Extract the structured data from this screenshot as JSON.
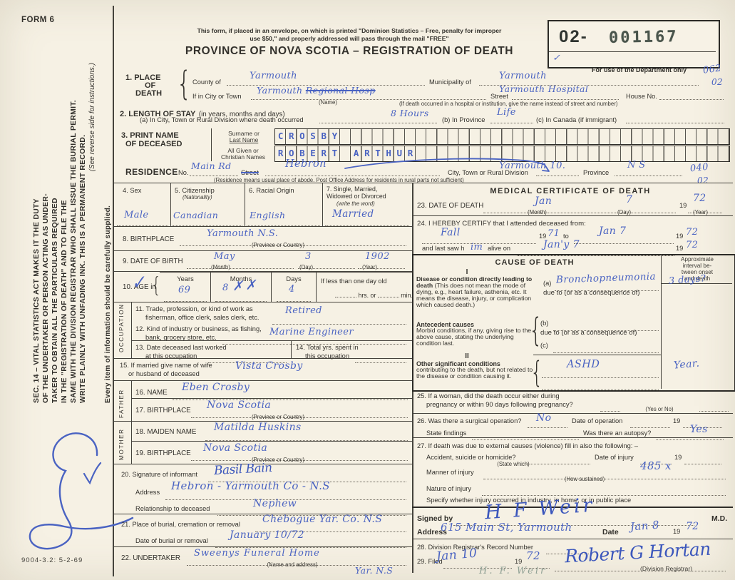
{
  "header": {
    "form_no": "FORM 6",
    "mail1": "This form, if placed in an envelope, on which is printed \"Dominion Statistics – Free, penalty for improper",
    "mail2": "use $50,\" and properly addressed will pass through the mail \"FREE\"",
    "title": "PROVINCE OF NOVA SCOTIA – REGISTRATION OF DEATH",
    "stamp_prefix": "02-",
    "stamp_number": "001167",
    "stamp_check": "✓",
    "dept_note": "For use of the Department only",
    "code1": "062",
    "code2": "02"
  },
  "sidebar": {
    "l1": "SEC. 14 – VITAL STATISTICS ACT MAKES IT THE DUTY",
    "l2": "OF THE UNDERTAKER OR PERSON ACTING AS UNDER-",
    "l3": "TAKER TO OBTAIN ALL THE PARTICULARS REQUIRED",
    "l4": "IN THE \"REGISTRATION OF DEATH\" AND TO FILE THE",
    "l5": "SAME WITH THE DIVISION REGISTRAR WHO SHALL ISSUE THE BURIAL PERMIT.",
    "l6": "WRITE PLAINLY WITH UNFADING INK. THIS IS A PERMANENT RECORD.",
    "see": "(See reverse side for instructions.)",
    "every": "Every item of information should be carefully supplied.",
    "check": "✓",
    "doc_code": "9004-3.2: 5-2-69"
  },
  "s1": {
    "label1": "1. PLACE",
    "label2": "OF",
    "label3": "DEATH",
    "county_label": "County of",
    "county_value": "Yarmouth",
    "municipality_label": "Municipality of",
    "municipality_value": "Yarmouth",
    "city_label": "If in City or Town",
    "city_value": "Yarmouth",
    "city_value_struck": "Regional Hosp",
    "name_note": "(Name)",
    "street_label": "Street",
    "street_value": "Yarmouth Hospital",
    "house_label": "House No.",
    "hospital_note": "(If death occurred in a hospital or institution, give the name instead of street and number)"
  },
  "s2": {
    "label": "2. LENGTH OF STAY",
    "label_sub": "(in years, months and days)",
    "a_label": "(a) In City, Town or Rural Division where death occurred",
    "a_value": "8 Hours",
    "b_label": "(b) In Province",
    "b_value": "Life",
    "c_label": "(c) In Canada (if immigrant)"
  },
  "s3": {
    "label1": "3. PRINT NAME",
    "label2": "OF DECEASED",
    "surname_label1": "Surname or",
    "surname_label2": "Last Name",
    "given_label1": "All Given or",
    "given_label2": "Christian Names",
    "surname": "CROSBY",
    "given": "ROBERT ARTHUR"
  },
  "res": {
    "label": "RESIDENCE",
    "no_label": "No.",
    "no_value": "Main Rd",
    "street_label": "Street",
    "place_value": "Hebron",
    "city_label": "City, Town or Rural Division",
    "city_value": "Yarmouth 10.",
    "prov_label": "Province",
    "prov_value": "N S",
    "code1": "040",
    "code2": "02",
    "note": "(Residence means usual place of abode. Post Office Address for residents in rural parts not sufficient)"
  },
  "s4": {
    "label": "4. Sex",
    "value": "Male"
  },
  "s5": {
    "label": "5. Citizenship",
    "label2": "(Nationality)",
    "value": "Canadian"
  },
  "s6": {
    "label": "6. Racial Origin",
    "value": "English"
  },
  "s7": {
    "label1": "7. Single, Married,",
    "label2": "Widowed or Divorced",
    "label3": "(write the word)",
    "value": "Married"
  },
  "s8": {
    "label": "8. BIRTHPLACE",
    "value": "Yarmouth  N.S.",
    "note": "(Province or Country)"
  },
  "s9": {
    "label": "9. DATE OF BIRTH",
    "month": "May",
    "month_note": "(Month)",
    "day": "3",
    "day_note": "(Day)",
    "year": "1902",
    "year_note": "(Year)"
  },
  "s10": {
    "label": "10. AGE in",
    "check": "✓",
    "years_label": "Years",
    "years": "69",
    "months_label": "Months",
    "months": "8",
    "months_x": "✗✗",
    "days_label": "Days",
    "days": "4",
    "less_label": "If less than one day old",
    "less_line1": "hrs. or",
    "less_line2": "min."
  },
  "occ_label": "OCCUPATION",
  "s11": {
    "l1": "11. Trade, profession, or kind of work as",
    "l2": "fisherman, office clerk, sales clerk, etc.",
    "value": "Retired"
  },
  "s12": {
    "l1": "12. Kind of industry or business, as fishing,",
    "l2": "bank, grocery store, etc.",
    "value": "Marine Engineer"
  },
  "s13": {
    "l1": "13. Date deceased last worked",
    "l2": "at this occupation"
  },
  "s14": {
    "l1": "14. Total yrs. spent in",
    "l2": "this occupation"
  },
  "s15": {
    "l1": "15. If married give name of wife",
    "l2": "or husband of deceased",
    "value": "Vista  Crosby"
  },
  "father_label": "FATHER",
  "mother_label": "MOTHER",
  "s16": {
    "label": "16. NAME",
    "value": "Eben  Crosby"
  },
  "s17": {
    "label": "17. BIRTHPLACE",
    "value": "Nova  Scotia",
    "note": "(Province or Country)"
  },
  "s18": {
    "label": "18. MAIDEN NAME",
    "value": "Matilda  Huskins"
  },
  "s19": {
    "label": "19. BIRTHPLACE",
    "value": "Nova  Scotia",
    "note": "(Province or Country)"
  },
  "s20": {
    "label": "20. Signature of informant",
    "value": "Basil Bain",
    "addr_label": "Address",
    "addr_value": "Hebron - Yarmouth Co - N.S",
    "rel_label": "Relationship to deceased",
    "rel_value": "Nephew"
  },
  "s21": {
    "label": "21. Place of burial, cremation or removal",
    "value": "Chebogue Yar. Co. N.S",
    "date_label": "Date of burial or removal",
    "date_value": "January 10/72"
  },
  "s22": {
    "label": "22. UNDERTAKER",
    "value": "Sweenys Funeral Home",
    "note": "(Name and address)",
    "value2": "Yar. N.S"
  },
  "med": {
    "title": "MEDICAL CERTIFICATE OF DEATH"
  },
  "s23": {
    "label": "23. DATE OF DEATH",
    "month": "Jan",
    "month_note": "(Month)",
    "day": "7",
    "day_note": "(Day)",
    "y19": "19",
    "year": "72",
    "year_note": "(Year)"
  },
  "s24": {
    "label": "24. I HEREBY CERTIFY that I attended deceased from:",
    "from": "Fall",
    "y19a": "19",
    "from_year": "71",
    "to_label": "to",
    "to": "Jan 7",
    "y19b": "19",
    "to_year": "72",
    "last_label1": "and last saw h",
    "last_him": "im",
    "last_label2": "alive on",
    "last": "Jan'y 7",
    "y19c": "19",
    "last_year": "72"
  },
  "cause": {
    "title": "CAUSE OF DEATH",
    "interval1": "Approximate",
    "interval2": "interval be-",
    "interval3": "tween onset",
    "interval4": "and death",
    "roman1": "I",
    "disease_bold": "Disease or condition directly leading to death",
    "disease_rest": " (This does not mean the mode of dying, e.g., heart failure, asthenia, etc. It means the disease, injury, or complication which caused death.)",
    "a_label": "(a)",
    "a_value": "Bronchopneumonia",
    "a_interval": "3 days?",
    "due_a": "due to (or as a consequence of)",
    "ante_bold": "Antecedent causes",
    "ante_rest": "Morbid conditions, if any, giving rise to the above cause, stating the underlying condition last.",
    "b_label": "(b)",
    "due_b": "due to (or as a consequence of)",
    "c_label": "(c)",
    "roman2": "II",
    "other_bold": "Other significant conditions",
    "other_rest": "contributing to the death, but not related to the disease or condition causing it.",
    "other_value": "ASHD",
    "other_interval": "Year."
  },
  "s25": {
    "l1": "25. If a woman, did the death occur either during",
    "l2": "pregnancy or within 90 days following pregnancy?",
    "note": "(Yes or No)"
  },
  "s26": {
    "l1": "26. Was there a surgical operation?",
    "value": "No",
    "op_label": "Date of operation",
    "y19": "19",
    "l2": "State findings",
    "autopsy_label": "Was there an autopsy?",
    "autopsy_value": "Yes"
  },
  "s27": {
    "l1": "27. If death was due to external causes (violence) fill in also the following: –",
    "l2": "Accident, suicide or homicide?",
    "state_which": "(State which)",
    "injury_label": "Date of injury",
    "y19": "19",
    "code": "485 x",
    "manner": "Manner of injury",
    "how": "(How sustained)",
    "nature": "Nature of injury",
    "specify": "Specify whether injury occurred in industry, in home, or in public place"
  },
  "sign": {
    "signed_label": "Signed by",
    "signature": "H F Weir",
    "md": "M.D.",
    "addr_label": "Address",
    "addr_value": "615 Main St, Yarmouth",
    "date_label": "Date",
    "date_value": "Jan 8",
    "y19": "19",
    "year": "72"
  },
  "s28": {
    "label": "28. Division Registrar's Record Number"
  },
  "s29": {
    "label": "29. Filed",
    "date": "Jan 10",
    "y19": "19",
    "year": "72",
    "registrar": "Robert G Hortan",
    "note": "(Division Registrar)",
    "pencil": "H. F.  Weir"
  }
}
